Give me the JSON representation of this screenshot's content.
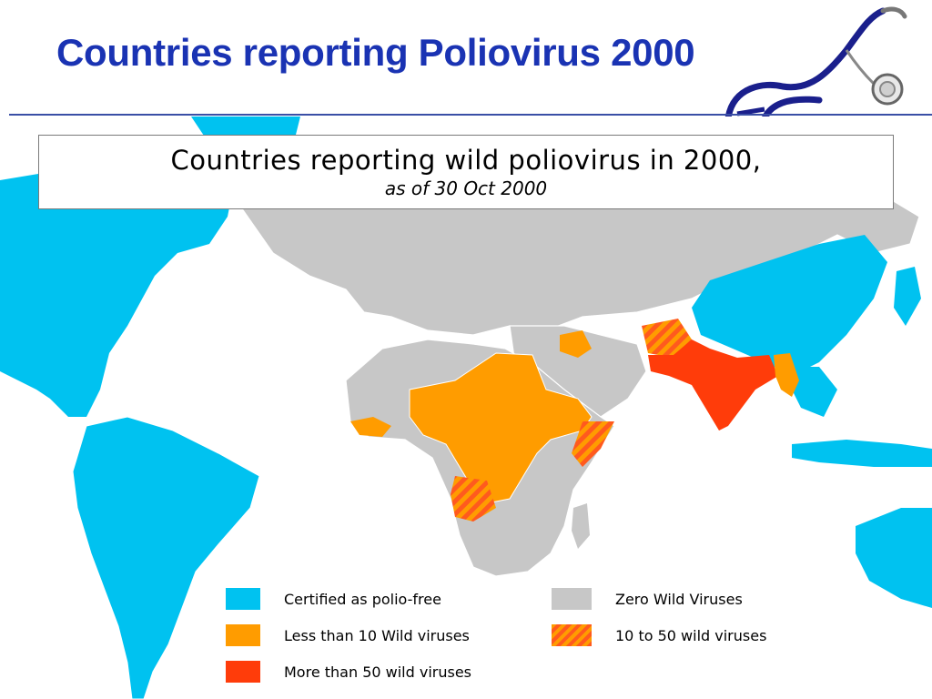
{
  "title": "Countries reporting Poliovirus 2000",
  "map": {
    "caption_main": "Countries reporting wild poliovirus in 2000,",
    "caption_sub": "as of 30 Oct 2000"
  },
  "legend": {
    "certified": "Certified as polio-free",
    "less_than_10": "Less than 10 Wild viruses",
    "more_than_50": "More than 50 wild viruses",
    "zero": "Zero Wild Viruses",
    "ten_to_50": "10 to 50 wild viruses"
  },
  "colors": {
    "title": "#1a33b3",
    "certified": "#00c2f0",
    "less_than_10": "#ff9c00",
    "more_than_50": "#ff3c0a",
    "zero": "#c7c7c7",
    "ten_to_50_stripe_a": "#ff9c00",
    "ten_to_50_stripe_b": "#ff5a1e"
  },
  "icons": [
    "stethoscope-icon"
  ]
}
